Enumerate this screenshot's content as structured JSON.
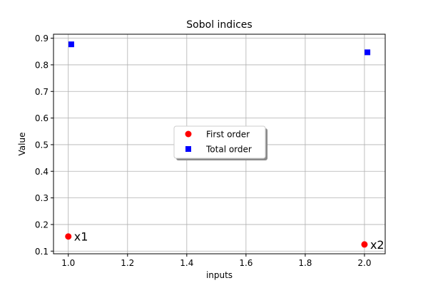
{
  "chart_data": {
    "type": "scatter",
    "title": "Sobol indices",
    "xlabel": "inputs",
    "ylabel": "Value",
    "xlim": [
      0.95,
      2.07
    ],
    "ylim": [
      0.09,
      0.915
    ],
    "xticks": [
      1.0,
      1.2,
      1.4,
      1.6,
      1.8,
      2.0
    ],
    "xtick_labels": [
      "1.0",
      "1.2",
      "1.4",
      "1.6",
      "1.8",
      "2.0"
    ],
    "yticks": [
      0.1,
      0.2,
      0.3,
      0.4,
      0.5,
      0.6,
      0.7,
      0.8,
      0.9
    ],
    "ytick_labels": [
      "0.1",
      "0.2",
      "0.3",
      "0.4",
      "0.5",
      "0.6",
      "0.7",
      "0.8",
      "0.9"
    ],
    "grid": true,
    "legend_position": "center",
    "series": [
      {
        "name": "First order",
        "marker": "circle",
        "color": "#ff0000",
        "points": [
          {
            "x": 1.0,
            "y": 0.155
          },
          {
            "x": 2.0,
            "y": 0.125
          }
        ]
      },
      {
        "name": "Total order",
        "marker": "square",
        "color": "#0000ff",
        "points": [
          {
            "x": 1.01,
            "y": 0.877
          },
          {
            "x": 2.01,
            "y": 0.847
          }
        ]
      }
    ],
    "annotations": [
      {
        "text": "x1",
        "x": 1.0,
        "y": 0.155
      },
      {
        "text": "x2",
        "x": 2.0,
        "y": 0.125
      }
    ]
  }
}
